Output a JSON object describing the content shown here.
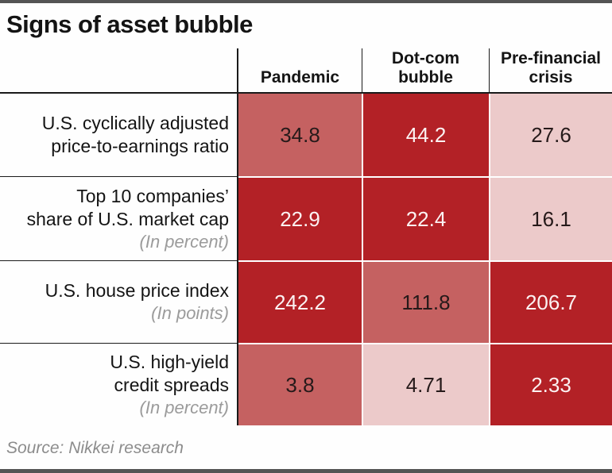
{
  "page": {
    "title": "Signs of asset bubble",
    "source": "Source: Nikkei research"
  },
  "colors": {
    "cell_dark": "#b32126",
    "cell_medium": "#c56161",
    "cell_light": "#eccaca",
    "text_on_dark": "#fbf2f2",
    "text_on_light": "#261a1a",
    "grid_line": "#1a1a1a",
    "top_bottom_bar": "#545454",
    "note_gray": "#9b9b9b",
    "source_gray": "#8c8c8c"
  },
  "chart_data": {
    "type": "heatmap",
    "title": "Signs of asset bubble",
    "source": "Source: Nikkei research",
    "columns": [
      "Pandemic",
      "Dot-com bubble",
      "Pre-financial crisis"
    ],
    "rows": [
      {
        "label_lines": [
          "U.S. cyclically adjusted",
          "price-to-earnings ratio"
        ],
        "note": "",
        "values": [
          "34.8",
          "44.2",
          "27.6"
        ],
        "intensity": [
          "medium",
          "dark",
          "light"
        ]
      },
      {
        "label_lines": [
          "Top 10 companies’",
          "share of U.S. market cap"
        ],
        "note": "(In percent)",
        "values": [
          "22.9",
          "22.4",
          "16.1"
        ],
        "intensity": [
          "dark",
          "dark",
          "light"
        ]
      },
      {
        "label_lines": [
          "U.S. house price index"
        ],
        "note": "(In points)",
        "values": [
          "242.2",
          "111.8",
          "206.7"
        ],
        "intensity": [
          "dark",
          "medium",
          "dark"
        ]
      },
      {
        "label_lines": [
          "U.S. high-yield",
          "credit spreads"
        ],
        "note": "(In percent)",
        "values": [
          "3.8",
          "4.71",
          "2.33"
        ],
        "intensity": [
          "medium",
          "light",
          "dark"
        ]
      }
    ]
  }
}
